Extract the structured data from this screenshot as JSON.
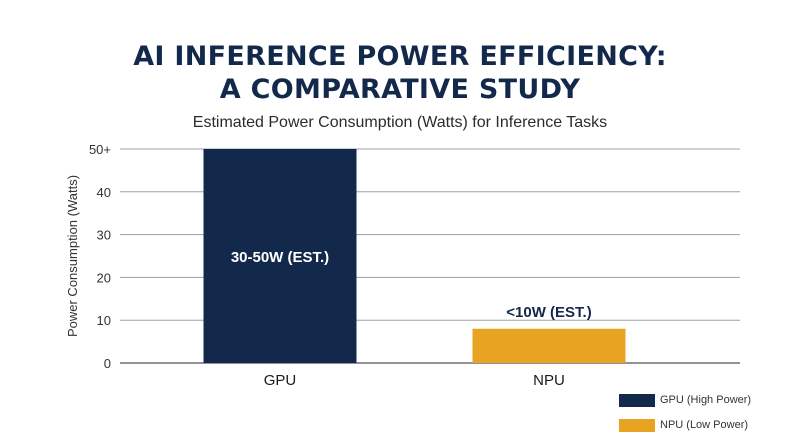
{
  "title_line1": "AI INFERENCE POWER EFFICIENCY:",
  "title_line2": "A COMPARATIVE STUDY",
  "chart_data": {
    "type": "bar",
    "title": "AI INFERENCE POWER EFFICIENCY: A COMPARATIVE STUDY",
    "subtitle": "Estimated Power Consumption (Watts) for Inference Tasks",
    "xlabel": "",
    "ylabel": "Power Consumption (Watts)",
    "ylim": [
      0,
      50
    ],
    "yticks": [
      0,
      10,
      20,
      30,
      40,
      50
    ],
    "ytick_labels": [
      "0",
      "10",
      "20",
      "30",
      "40",
      "50+"
    ],
    "categories": [
      "GPU",
      "NPU"
    ],
    "values": [
      50,
      8
    ],
    "data_labels": [
      "30-50W (EST.)",
      "<10W (EST.)"
    ],
    "data_label_colors": [
      "#ffffff",
      "#13294b"
    ],
    "colors": [
      "#13294b",
      "#e9a323"
    ],
    "grid": true,
    "legend_position": "bottom-right",
    "legend": [
      {
        "label": "GPU (High Power)",
        "color": "#13294b"
      },
      {
        "label": "NPU (Low Power)",
        "color": "#e9a323"
      }
    ]
  }
}
